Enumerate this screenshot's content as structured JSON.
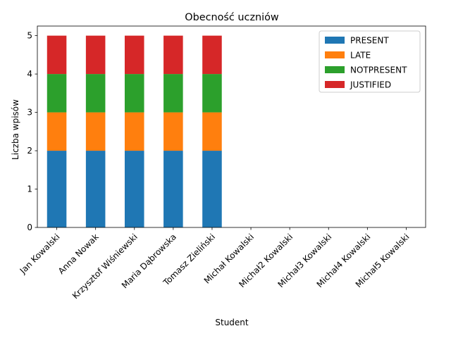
{
  "chart_data": {
    "type": "bar",
    "stacked": true,
    "title": "Obecność uczniów",
    "xlabel": "Student",
    "ylabel": "Liczba wpisów",
    "categories": [
      "Jan Kowalski",
      "Anna Nowak",
      "Krzysztof Wiśniewski",
      "Maria Dąbrowska",
      "Tomasz Zieliński",
      "Michał Kowalski",
      "Michał2 Kowalski",
      "Michał3 Kowalski",
      "Michał4 Kowalski",
      "Michał5 Kowalski"
    ],
    "series": [
      {
        "name": "PRESENT",
        "color": "#1f77b4",
        "values": [
          2,
          2,
          2,
          2,
          2,
          0,
          0,
          0,
          0,
          0
        ]
      },
      {
        "name": "LATE",
        "color": "#ff7f0e",
        "values": [
          1,
          1,
          1,
          1,
          1,
          0,
          0,
          0,
          0,
          0
        ]
      },
      {
        "name": "NOTPRESENT",
        "color": "#2ca02c",
        "values": [
          1,
          1,
          1,
          1,
          1,
          0,
          0,
          0,
          0,
          0
        ]
      },
      {
        "name": "JUSTIFIED",
        "color": "#d62728",
        "values": [
          1,
          1,
          1,
          1,
          1,
          0,
          0,
          0,
          0,
          0
        ]
      }
    ],
    "ylim": [
      0,
      5.25
    ],
    "yticks": [
      "0",
      "1",
      "2",
      "3",
      "4",
      "5"
    ],
    "grid": false,
    "legend": "top-right"
  }
}
